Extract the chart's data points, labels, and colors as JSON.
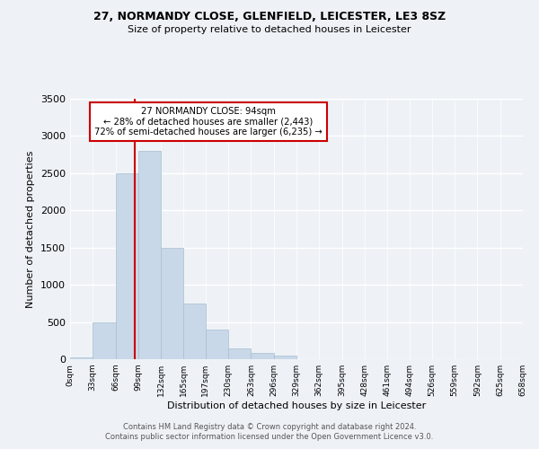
{
  "title1": "27, NORMANDY CLOSE, GLENFIELD, LEICESTER, LE3 8SZ",
  "title2": "Size of property relative to detached houses in Leicester",
  "xlabel": "Distribution of detached houses by size in Leicester",
  "ylabel": "Number of detached properties",
  "bin_edges": [
    0,
    33,
    66,
    99,
    132,
    165,
    197,
    230,
    263,
    296,
    329,
    362,
    395,
    428,
    461,
    494,
    526,
    559,
    592,
    625,
    658
  ],
  "counts": [
    30,
    500,
    2500,
    2800,
    1500,
    750,
    400,
    150,
    80,
    50,
    0,
    0,
    0,
    0,
    0,
    0,
    0,
    0,
    0,
    0
  ],
  "bar_color": "#c8d8e8",
  "bar_edge_color": "#a8bece",
  "vline_x": 94,
  "vline_color": "#cc0000",
  "annotation_text": "27 NORMANDY CLOSE: 94sqm\n← 28% of detached houses are smaller (2,443)\n72% of semi-detached houses are larger (6,235) →",
  "annotation_box_edge": "#cc0000",
  "ylim": [
    0,
    3500
  ],
  "tick_labels": [
    "0sqm",
    "33sqm",
    "66sqm",
    "99sqm",
    "132sqm",
    "165sqm",
    "197sqm",
    "230sqm",
    "263sqm",
    "296sqm",
    "329sqm",
    "362sqm",
    "395sqm",
    "428sqm",
    "461sqm",
    "494sqm",
    "526sqm",
    "559sqm",
    "592sqm",
    "625sqm",
    "658sqm"
  ],
  "footer1": "Contains HM Land Registry data © Crown copyright and database right 2024.",
  "footer2": "Contains public sector information licensed under the Open Government Licence v3.0.",
  "bg_color": "#eef2f7"
}
